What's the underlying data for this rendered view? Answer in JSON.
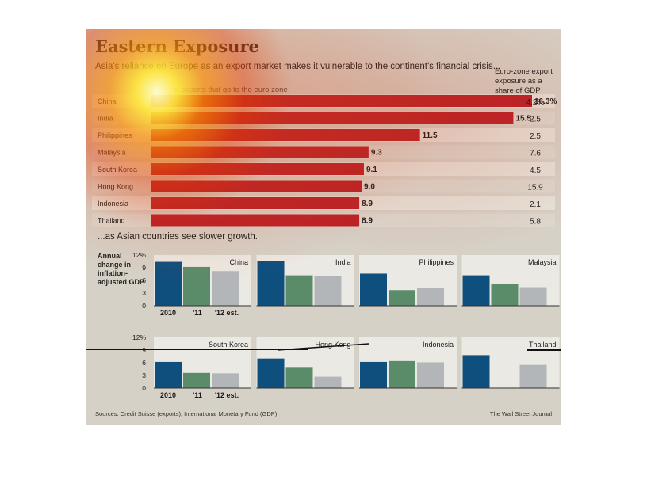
{
  "title": "Eastern Exposure",
  "subtitle": "Asia's reliance on Europe as an export market makes it vulnerable to the continent's financial crisis...",
  "bar_caption": "of exports that go to the euro zone",
  "column_header": "Euro-zone export exposure as a share of GDP",
  "subtitle2": "...as Asian countries see slower growth.",
  "growth_ylabel": "Annual change in inflation-adjusted GDP",
  "source": "Sources: Credit Suisse (exports); International Monetary Fund (GDP)",
  "credit": "The Wall Street Journal",
  "colors": {
    "bar": "#b82028",
    "s2010": "#0f4f7e",
    "s2011": "#5a8c69",
    "s2012": "#b3b6b9",
    "panel": "#ebe9e3",
    "background": "#d6d1c7"
  },
  "chart_data": [
    {
      "type": "bar",
      "orientation": "horizontal",
      "categories": [
        "China",
        "India",
        "Philippines",
        "Malaysia",
        "South Korea",
        "Hong Kong",
        "Indonesia",
        "Thailand"
      ],
      "values": [
        16.3,
        15.5,
        11.5,
        9.3,
        9.1,
        9.0,
        8.9,
        8.9
      ],
      "value_labels": [
        "16.3%",
        "15.5",
        "11.5",
        "9.3",
        "9.1",
        "9.0",
        "8.9",
        "8.9"
      ],
      "side_column_values": [
        "4.2%",
        "2.5",
        "2.5",
        "7.6",
        "4.5",
        "15.9",
        "2.1",
        "5.8"
      ],
      "xlim": [
        0,
        16.3
      ]
    },
    {
      "type": "bar",
      "ylim": [
        0,
        12
      ],
      "yticks": [
        0,
        3,
        6,
        9,
        12
      ],
      "ytick_labels": [
        "0",
        "3",
        "6",
        "9",
        "12%"
      ],
      "categories": [
        "2010",
        "'11",
        "'12 est."
      ],
      "panels": [
        {
          "name": "China",
          "values": [
            10.4,
            9.2,
            8.2
          ]
        },
        {
          "name": "India",
          "values": [
            10.6,
            7.2,
            7.0
          ]
        },
        {
          "name": "Philippines",
          "values": [
            7.6,
            3.7,
            4.2
          ]
        },
        {
          "name": "Malaysia",
          "values": [
            7.2,
            5.1,
            4.4
          ]
        },
        {
          "name": "South Korea",
          "values": [
            6.2,
            3.6,
            3.5
          ]
        },
        {
          "name": "Hong Kong",
          "values": [
            7.0,
            5.0,
            2.7
          ]
        },
        {
          "name": "Indonesia",
          "values": [
            6.2,
            6.4,
            6.1
          ]
        },
        {
          "name": "Thailand",
          "values": [
            7.8,
            0.1,
            5.5
          ]
        }
      ]
    }
  ]
}
